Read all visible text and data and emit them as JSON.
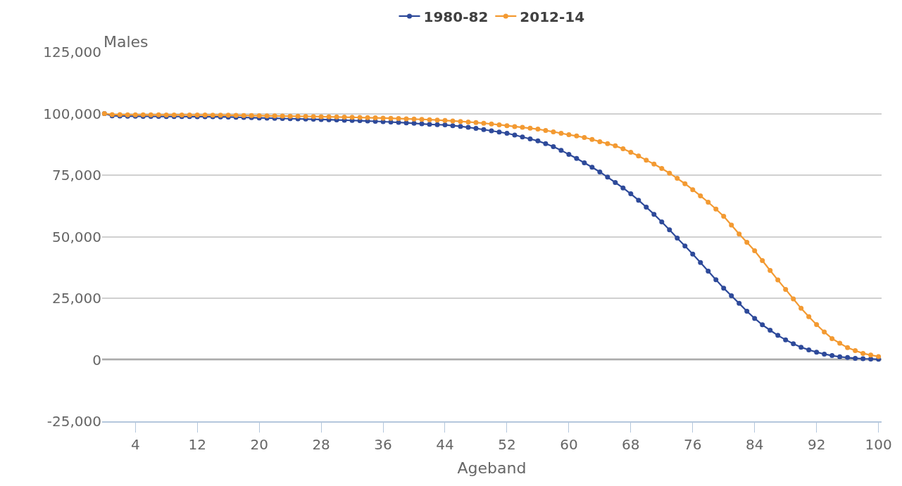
{
  "chart_data": {
    "type": "line",
    "xlabel": "Ageband",
    "annotations": [
      "Males"
    ],
    "x": [
      0,
      1,
      2,
      3,
      4,
      5,
      6,
      7,
      8,
      9,
      10,
      11,
      12,
      13,
      14,
      15,
      16,
      17,
      18,
      19,
      20,
      21,
      22,
      23,
      24,
      25,
      26,
      27,
      28,
      29,
      30,
      31,
      32,
      33,
      34,
      35,
      36,
      37,
      38,
      39,
      40,
      41,
      42,
      43,
      44,
      45,
      46,
      47,
      48,
      49,
      50,
      51,
      52,
      53,
      54,
      55,
      56,
      57,
      58,
      59,
      60,
      61,
      62,
      63,
      64,
      65,
      66,
      67,
      68,
      69,
      70,
      71,
      72,
      73,
      74,
      75,
      76,
      77,
      78,
      79,
      80,
      81,
      82,
      83,
      84,
      85,
      86,
      87,
      88,
      89,
      90,
      91,
      92,
      93,
      94,
      95,
      96,
      97,
      98,
      99,
      100
    ],
    "series": [
      {
        "name": "1980-82",
        "color": "#2e4a9a",
        "values": [
          100000,
          99100,
          99000,
          98950,
          98900,
          98880,
          98860,
          98840,
          98820,
          98800,
          98780,
          98760,
          98740,
          98720,
          98690,
          98650,
          98590,
          98520,
          98430,
          98340,
          98250,
          98160,
          98080,
          98000,
          97930,
          97850,
          97770,
          97690,
          97600,
          97510,
          97420,
          97320,
          97220,
          97110,
          96990,
          96860,
          96720,
          96570,
          96410,
          96230,
          96040,
          95840,
          95620,
          95500,
          95400,
          95100,
          94800,
          94400,
          94000,
          93500,
          93000,
          92500,
          92000,
          91300,
          90500,
          89700,
          88900,
          87800,
          86600,
          85100,
          83400,
          81800,
          80000,
          78200,
          76300,
          74200,
          72000,
          69800,
          67400,
          64800,
          62000,
          59100,
          56000,
          52800,
          49400,
          46200,
          42900,
          39500,
          36000,
          32500,
          29100,
          26000,
          22900,
          19700,
          16800,
          14200,
          12000,
          9900,
          8100,
          6500,
          5100,
          4000,
          3100,
          2300,
          1700,
          1200,
          900,
          600,
          400,
          300,
          200
        ]
      },
      {
        "name": "2012-14",
        "color": "#f39a32",
        "values": [
          100000,
          99600,
          99550,
          99520,
          99500,
          99490,
          99480,
          99470,
          99460,
          99450,
          99440,
          99430,
          99420,
          99410,
          99390,
          99370,
          99340,
          99300,
          99250,
          99200,
          99150,
          99100,
          99050,
          99000,
          98950,
          98900,
          98850,
          98800,
          98740,
          98680,
          98620,
          98560,
          98490,
          98420,
          98340,
          98260,
          98170,
          98080,
          97980,
          97870,
          97760,
          97640,
          97510,
          97370,
          97200,
          97020,
          96820,
          96600,
          96350,
          96080,
          95780,
          95460,
          95100,
          94750,
          94400,
          94050,
          93700,
          93150,
          92600,
          92000,
          91400,
          90900,
          90300,
          89500,
          88600,
          87800,
          86900,
          85700,
          84300,
          82800,
          81100,
          79500,
          77700,
          75800,
          73700,
          71500,
          69100,
          66600,
          64000,
          61200,
          58300,
          54700,
          51100,
          47700,
          44300,
          40300,
          36300,
          32400,
          28600,
          24700,
          20900,
          17500,
          14300,
          11300,
          8600,
          6700,
          4900,
          3700,
          2600,
          1900,
          1300
        ]
      }
    ],
    "xlim": [
      -0.3,
      100.4
    ],
    "xticks": [
      4,
      12,
      20,
      28,
      36,
      44,
      52,
      60,
      68,
      76,
      84,
      92,
      100
    ],
    "ylim": [
      -25000,
      125000
    ],
    "yticks": [
      {
        "value": -25000,
        "label": "-25,000"
      },
      {
        "value": 0,
        "label": "0"
      },
      {
        "value": 25000,
        "label": "25,000"
      },
      {
        "value": 50000,
        "label": "50,000"
      },
      {
        "value": 75000,
        "label": "75,000"
      },
      {
        "value": 100000,
        "label": "100,000"
      },
      {
        "value": 125000,
        "label": "125,000"
      }
    ],
    "ref_lines": [
      {
        "axis": "y",
        "value": 0,
        "color": "#808080"
      }
    ],
    "grid": "y",
    "legend": "top",
    "marker": "circle",
    "line_style": "solid"
  }
}
